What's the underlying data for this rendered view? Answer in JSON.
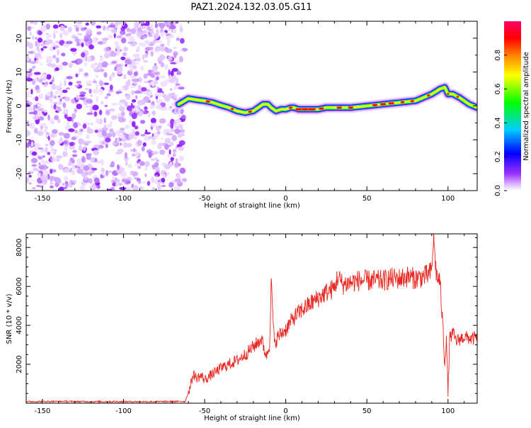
{
  "title": "PAZ1.2024.132.03.05.G11",
  "chart_data": [
    {
      "type": "heatmap",
      "xlabel": "Height of straight line (km)",
      "ylabel": "Frequency (Hz)",
      "xlim": [
        -160,
        118
      ],
      "ylim": [
        -25,
        25
      ],
      "xticks": [
        -150,
        -100,
        -50,
        0,
        50,
        100
      ],
      "yticks": [
        -20,
        -10,
        0,
        10,
        20
      ],
      "noise_region_x": [
        -160,
        -65
      ],
      "ridge": {
        "x": [
          -66,
          -60,
          -55,
          -50,
          -45,
          -40,
          -35,
          -30,
          -25,
          -20,
          -17,
          -14,
          -11,
          -9,
          -6,
          -3,
          0,
          3,
          5,
          8,
          12,
          20,
          25,
          30,
          40,
          50,
          60,
          70,
          80,
          85,
          90,
          95,
          98,
          100,
          103,
          107,
          110,
          113,
          118
        ],
        "y": [
          0.5,
          2.2,
          1.8,
          1.5,
          1.0,
          0.2,
          -0.5,
          -1.5,
          -2.0,
          -1.5,
          -0.5,
          0.5,
          0.5,
          -0.5,
          -1.5,
          -1.0,
          -1.0,
          -0.5,
          -0.5,
          -1.0,
          -1.0,
          -1.0,
          -0.5,
          -0.5,
          -0.5,
          0.0,
          0.5,
          1.0,
          1.5,
          2.5,
          3.5,
          5.0,
          5.5,
          3.5,
          3.5,
          2.5,
          1.5,
          0.5,
          -0.5
        ]
      },
      "colorbar": {
        "label": "Normalized spectral amplitude",
        "range": [
          0,
          1
        ],
        "ticks": [
          "0.0",
          "0.2",
          "0.4",
          "0.6",
          "0.8"
        ],
        "colors": [
          "#ffffff",
          "#9b30ff",
          "#0000ff",
          "#00cfff",
          "#00ff00",
          "#ffff00",
          "#ff8000",
          "#ff0000",
          "#ff0066"
        ]
      }
    },
    {
      "type": "line",
      "xlabel": "Height of straight line (km)",
      "ylabel": "SNR (10 * v/v)",
      "xlim": [
        -160,
        118
      ],
      "ylim": [
        0,
        8700
      ],
      "xticks": [
        -150,
        -100,
        -50,
        0,
        50,
        100
      ],
      "yticks": [
        2000,
        4000,
        6000,
        8000
      ],
      "series": [
        {
          "color": "#e8251f",
          "x": [
            -160,
            -140,
            -120,
            -100,
            -80,
            -62,
            -59,
            -57,
            -55,
            -52,
            -50,
            -45,
            -40,
            -35,
            -30,
            -25,
            -20,
            -15,
            -12,
            -10,
            -9,
            -7,
            -5,
            0,
            5,
            10,
            15,
            20,
            25,
            30,
            32,
            35,
            40,
            45,
            50,
            55,
            60,
            65,
            70,
            75,
            80,
            85,
            88,
            90,
            91,
            93,
            95,
            97,
            98,
            99,
            100,
            101,
            103,
            105,
            110,
            115,
            118
          ],
          "y": [
            80,
            90,
            80,
            80,
            80,
            90,
            800,
            1500,
            1300,
            1400,
            1200,
            1500,
            1800,
            2000,
            2200,
            2500,
            2900,
            3300,
            2400,
            3000,
            6200,
            3000,
            3400,
            3800,
            4400,
            4800,
            5100,
            5400,
            5700,
            5900,
            6500,
            6100,
            6200,
            6300,
            6300,
            6300,
            6300,
            6400,
            6400,
            6500,
            6400,
            6500,
            6600,
            6800,
            8500,
            6500,
            6300,
            3700,
            2000,
            3400,
            500,
            3300,
            3600,
            3200,
            3400,
            3300,
            3400
          ]
        }
      ]
    }
  ]
}
